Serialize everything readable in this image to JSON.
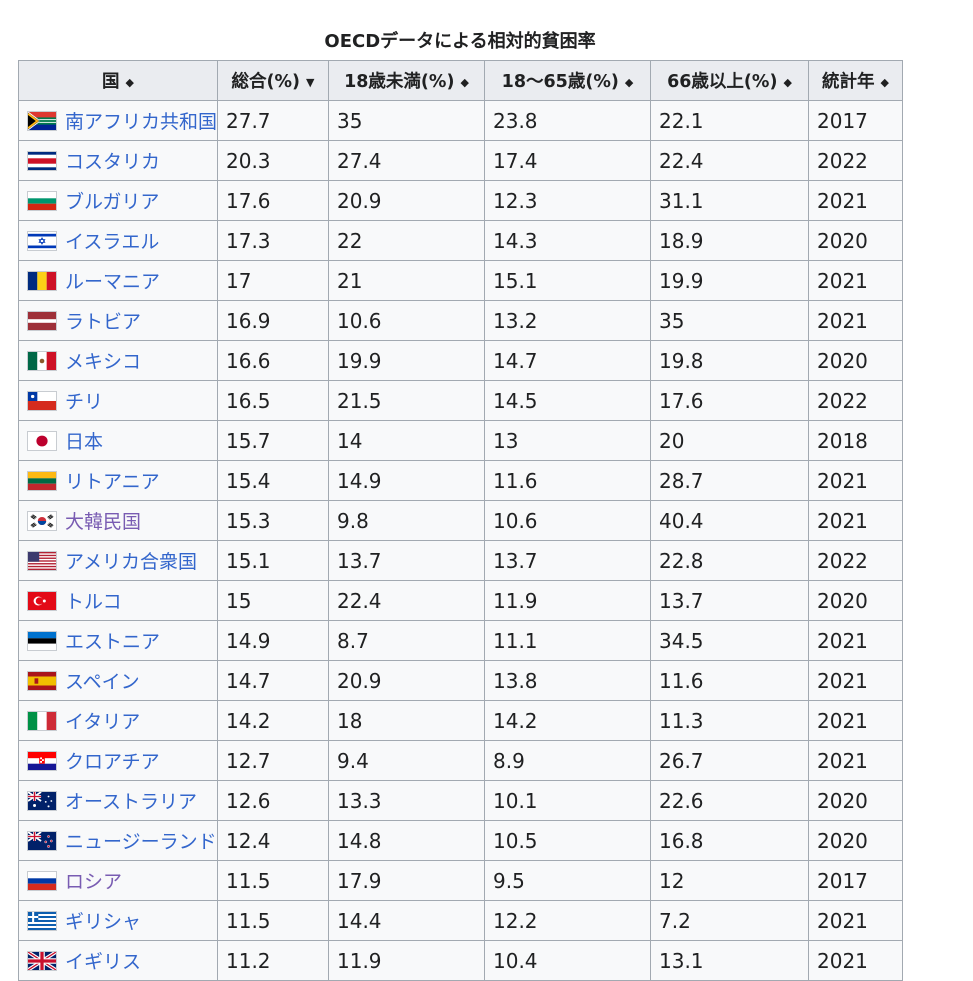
{
  "caption": "OECDデータによる相対的貧困率",
  "headers": [
    "国",
    "総合(%)",
    "18歳未満(%)",
    "18～65歳(%)",
    "66歳以上(%)",
    "統計年"
  ],
  "sort_icons": [
    "sort-both-icon",
    "sort-down-icon",
    "sort-both-icon",
    "sort-both-icon",
    "sort-both-icon",
    "sort-both-icon"
  ],
  "rows": [
    {
      "country": "南アフリカ共和国",
      "flag": "za",
      "values": [
        "27.7",
        "35",
        "23.8",
        "22.1",
        "2017"
      ]
    },
    {
      "country": "コスタリカ",
      "flag": "cr",
      "values": [
        "20.3",
        "27.4",
        "17.4",
        "22.4",
        "2022"
      ]
    },
    {
      "country": "ブルガリア",
      "flag": "bg",
      "values": [
        "17.6",
        "20.9",
        "12.3",
        "31.1",
        "2021"
      ]
    },
    {
      "country": "イスラエル",
      "flag": "il",
      "values": [
        "17.3",
        "22",
        "14.3",
        "18.9",
        "2020"
      ]
    },
    {
      "country": "ルーマニア",
      "flag": "ro",
      "values": [
        "17",
        "21",
        "15.1",
        "19.9",
        "2021"
      ]
    },
    {
      "country": "ラトビア",
      "flag": "lv",
      "values": [
        "16.9",
        "10.6",
        "13.2",
        "35",
        "2021"
      ]
    },
    {
      "country": "メキシコ",
      "flag": "mx",
      "values": [
        "16.6",
        "19.9",
        "14.7",
        "19.8",
        "2020"
      ]
    },
    {
      "country": "チリ",
      "flag": "cl",
      "values": [
        "16.5",
        "21.5",
        "14.5",
        "17.6",
        "2022"
      ]
    },
    {
      "country": "日本",
      "flag": "jp",
      "values": [
        "15.7",
        "14",
        "13",
        "20",
        "2018"
      ]
    },
    {
      "country": "リトアニア",
      "flag": "lt",
      "values": [
        "15.4",
        "14.9",
        "11.6",
        "28.7",
        "2021"
      ]
    },
    {
      "country": "大韓民国",
      "flag": "kr",
      "values": [
        "15.3",
        "9.8",
        "10.6",
        "40.4",
        "2021"
      ]
    },
    {
      "country": "アメリカ合衆国",
      "flag": "us",
      "values": [
        "15.1",
        "13.7",
        "13.7",
        "22.8",
        "2022"
      ]
    },
    {
      "country": "トルコ",
      "flag": "tr",
      "values": [
        "15",
        "22.4",
        "11.9",
        "13.7",
        "2020"
      ]
    },
    {
      "country": "エストニア",
      "flag": "ee",
      "values": [
        "14.9",
        "8.7",
        "11.1",
        "34.5",
        "2021"
      ]
    },
    {
      "country": "スペイン",
      "flag": "es",
      "values": [
        "14.7",
        "20.9",
        "13.8",
        "11.6",
        "2021"
      ]
    },
    {
      "country": "イタリア",
      "flag": "it",
      "values": [
        "14.2",
        "18",
        "14.2",
        "11.3",
        "2021"
      ]
    },
    {
      "country": "クロアチア",
      "flag": "hr",
      "values": [
        "12.7",
        "9.4",
        "8.9",
        "26.7",
        "2021"
      ]
    },
    {
      "country": "オーストラリア",
      "flag": "au",
      "values": [
        "12.6",
        "13.3",
        "10.1",
        "22.6",
        "2020"
      ]
    },
    {
      "country": "ニュージーランド",
      "flag": "nz",
      "values": [
        "12.4",
        "14.8",
        "10.5",
        "16.8",
        "2020"
      ]
    },
    {
      "country": "ロシア",
      "flag": "ru",
      "values": [
        "11.5",
        "17.9",
        "9.5",
        "12",
        "2017"
      ]
    },
    {
      "country": "ギリシャ",
      "flag": "gr",
      "values": [
        "11.5",
        "14.4",
        "12.2",
        "7.2",
        "2021"
      ]
    },
    {
      "country": "イギリス",
      "flag": "gb",
      "values": [
        "11.2",
        "11.9",
        "10.4",
        "13.1",
        "2021"
      ]
    }
  ],
  "colors": {
    "link": "#3366cc",
    "visited_link": "#795cb2",
    "header_bg": "#eaecf0",
    "cell_bg": "#f8f9fa",
    "border": "#a2a9b1"
  }
}
